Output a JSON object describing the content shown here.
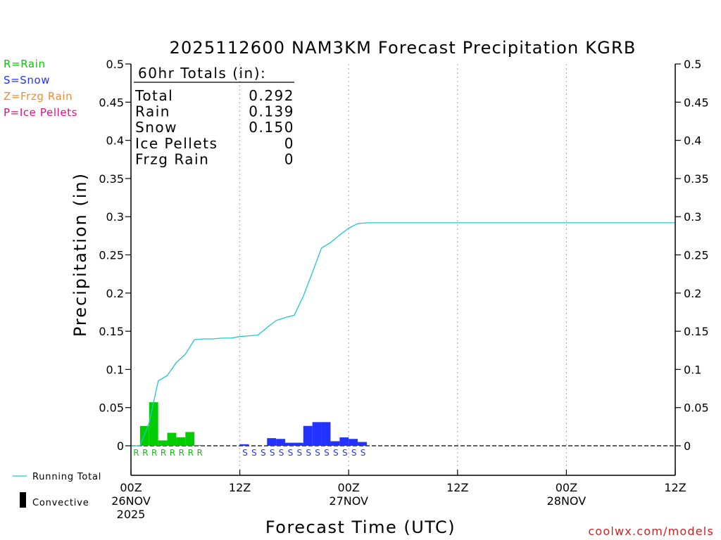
{
  "chart_data": {
    "type": "bar",
    "title": "2025112600 NAM3KM Forecast Precipitation KGRB",
    "xlabel": "Forecast Time (UTC)",
    "ylabel": "Precipitation (in)",
    "ylim": [
      -0.04,
      0.5
    ],
    "xlim": [
      0,
      60
    ],
    "yticks": [
      0,
      0.05,
      0.1,
      0.15,
      0.2,
      0.25,
      0.3,
      0.35,
      0.4,
      0.45,
      0.5
    ],
    "ytick_labels": [
      "0",
      "0.05",
      "0.1",
      "0.15",
      "0.2",
      "0.25",
      "0.3",
      "0.35",
      "0.4",
      "0.45",
      "0.5"
    ],
    "xticks": [
      {
        "hour": 0,
        "lines": [
          "00Z",
          "26NOV",
          "2025"
        ]
      },
      {
        "hour": 12,
        "lines": [
          "12Z"
        ]
      },
      {
        "hour": 24,
        "lines": [
          "00Z",
          "27NOV"
        ]
      },
      {
        "hour": 36,
        "lines": [
          "12Z"
        ]
      },
      {
        "hour": 48,
        "lines": [
          "00Z",
          "28NOV"
        ]
      },
      {
        "hour": 60,
        "lines": [
          "12Z"
        ]
      }
    ],
    "grid_vertical_hours": [
      12,
      24,
      36,
      48
    ],
    "hourly_bars": [
      {
        "hour": 1,
        "value": 0.0,
        "type": "R"
      },
      {
        "hour": 2,
        "value": 0.026,
        "type": "R"
      },
      {
        "hour": 3,
        "value": 0.057,
        "type": "R"
      },
      {
        "hour": 4,
        "value": 0.007,
        "type": "R"
      },
      {
        "hour": 5,
        "value": 0.017,
        "type": "R"
      },
      {
        "hour": 6,
        "value": 0.011,
        "type": "R"
      },
      {
        "hour": 7,
        "value": 0.018,
        "type": "R"
      },
      {
        "hour": 8,
        "value": 0.001,
        "type": "R"
      },
      {
        "hour": 13,
        "value": 0.002,
        "type": "S"
      },
      {
        "hour": 14,
        "value": 0.0,
        "type": "S"
      },
      {
        "hour": 15,
        "value": 0.0,
        "type": "S"
      },
      {
        "hour": 16,
        "value": 0.01,
        "type": "S"
      },
      {
        "hour": 17,
        "value": 0.009,
        "type": "S"
      },
      {
        "hour": 18,
        "value": 0.004,
        "type": "S"
      },
      {
        "hour": 19,
        "value": 0.004,
        "type": "S"
      },
      {
        "hour": 20,
        "value": 0.026,
        "type": "S"
      },
      {
        "hour": 21,
        "value": 0.031,
        "type": "S"
      },
      {
        "hour": 22,
        "value": 0.031,
        "type": "S"
      },
      {
        "hour": 23,
        "value": 0.006,
        "type": "S"
      },
      {
        "hour": 24,
        "value": 0.011,
        "type": "S"
      },
      {
        "hour": 25,
        "value": 0.009,
        "type": "S"
      },
      {
        "hour": 26,
        "value": 0.005,
        "type": "S"
      }
    ],
    "running_total": {
      "name": "Running Total",
      "hours": [
        0,
        1,
        2,
        3,
        4,
        5,
        6,
        7,
        8,
        9,
        10,
        11,
        12,
        13,
        14,
        15,
        16,
        17,
        18,
        19,
        20,
        21,
        22,
        23,
        24,
        25,
        26,
        27,
        60
      ],
      "values": [
        0,
        0,
        0.03,
        0.085,
        0.092,
        0.109,
        0.12,
        0.139,
        0.14,
        0.14,
        0.141,
        0.141,
        0.143,
        0.144,
        0.145,
        0.155,
        0.164,
        0.168,
        0.171,
        0.196,
        0.227,
        0.259,
        0.266,
        0.276,
        0.285,
        0.291,
        0.292,
        0.292,
        0.292
      ]
    },
    "colors": {
      "rain": "#00cc00",
      "snow": "#2233ff",
      "frzg_rain": "#f08c2a",
      "ice_pellets": "#e0107a",
      "running_total": "#20c8c8",
      "convective": "#000000",
      "grid": "#aaaaaa"
    }
  },
  "title": "2025112600 NAM3KM Forecast Precipitation KGRB",
  "xlabel": "Forecast Time (UTC)",
  "ylabel": "Precipitation (in)",
  "legend_types": [
    {
      "label": "R=Rain",
      "color": "#00cc00"
    },
    {
      "label": "S=Snow",
      "color": "#2233ff"
    },
    {
      "label": "Z=Frzg Rain",
      "color": "#f08c2a"
    },
    {
      "label": "P=Ice Pellets",
      "color": "#e0107a"
    }
  ],
  "legend_bottom": {
    "running_total": "Running Total",
    "convective": "Convective"
  },
  "totals": {
    "heading": "60hr Totals (in):",
    "rows": [
      {
        "label": "Total",
        "value": "0.292"
      },
      {
        "label": "Rain",
        "value": "0.139"
      },
      {
        "label": "Snow",
        "value": "0.150"
      },
      {
        "label": "Ice Pellets",
        "value": "0"
      },
      {
        "label": "Frzg Rain",
        "value": "0"
      }
    ]
  },
  "credit": "coolwx.com/models"
}
